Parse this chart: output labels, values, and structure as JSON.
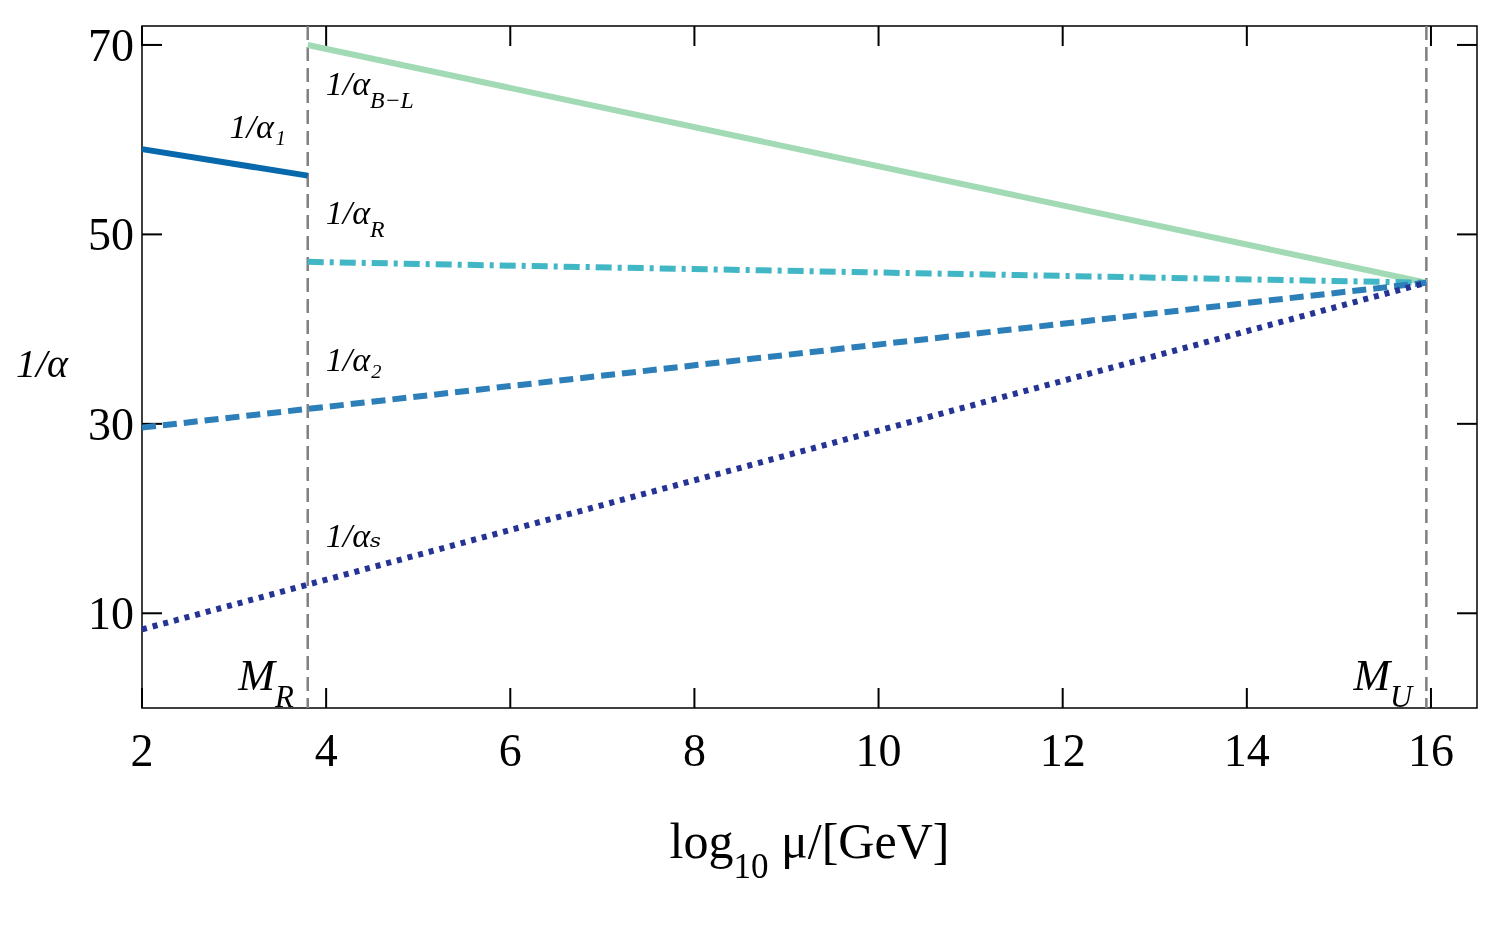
{
  "chart_data": {
    "type": "line",
    "xlabel": "log$_{10}$ μ/[GeV]",
    "ylabel": "1/α",
    "xlim": [
      2,
      16.5
    ],
    "ylim": [
      0,
      72
    ],
    "xticks": [
      2,
      4,
      6,
      8,
      10,
      12,
      14,
      16
    ],
    "yticks": [
      10,
      30,
      50,
      70
    ],
    "grid": false,
    "series": [
      {
        "name": "1/α₁",
        "color": "#0868ac",
        "line_style": "solid",
        "x": [
          2,
          3.8
        ],
        "values": [
          59.0,
          56.2
        ]
      },
      {
        "name": "1/α$_{B−L}$",
        "color": "#a1dab4",
        "line_style": "solid",
        "x": [
          3.8,
          15.95
        ],
        "values": [
          70,
          44.9
        ]
      },
      {
        "name": "1/α$_{R}$",
        "color": "#41b6c4",
        "line_style": "dashdot",
        "x": [
          3.8,
          15.95
        ],
        "values": [
          47.1,
          44.9
        ]
      },
      {
        "name": "1/α₂",
        "color": "#2c7fb8",
        "line_style": "dashed",
        "x": [
          2,
          15.95
        ],
        "values": [
          29.6,
          44.9
        ]
      },
      {
        "name": "1/αₛ",
        "color": "#253494",
        "line_style": "dotted",
        "x": [
          2,
          15.95
        ],
        "values": [
          8.3,
          44.9
        ]
      }
    ],
    "ref_lines": [
      {
        "axis": "x",
        "value": 3.8,
        "label": "M$_{R}$",
        "color": "#808080",
        "line_style": "dashed"
      },
      {
        "axis": "x",
        "value": 15.95,
        "label": "M$_{U}$",
        "color": "#808080",
        "line_style": "dashed"
      }
    ]
  }
}
